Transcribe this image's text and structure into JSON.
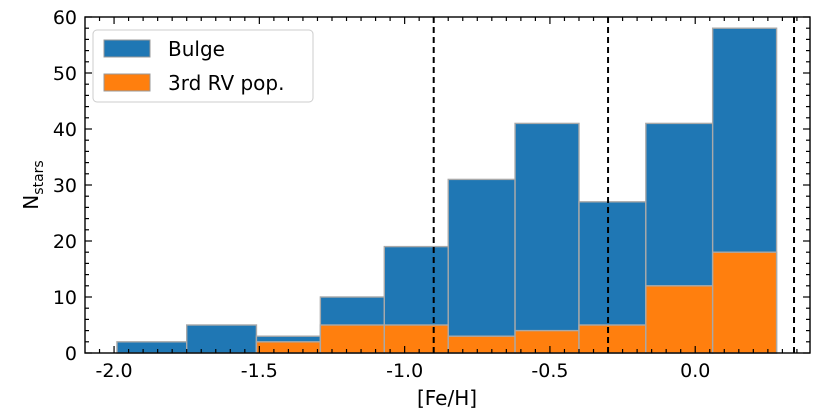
{
  "chart_data": {
    "type": "bar",
    "title": "",
    "xlabel": "[Fe/H]",
    "ylabel_main": "N",
    "ylabel_sub": "stars",
    "xlim": [
      -2.1,
      0.395
    ],
    "ylim": [
      0,
      60
    ],
    "bin_edges": [
      -1.99,
      -1.75,
      -1.51,
      -1.29,
      -1.07,
      -0.85,
      -0.62,
      -0.4,
      -0.17,
      0.06,
      0.28
    ],
    "x_ticks": [
      -2.0,
      -1.5,
      -1.0,
      -0.5,
      0.0
    ],
    "x_tick_labels": [
      "-2.0",
      "-1.5",
      "-1.0",
      "-0.5",
      "0.0"
    ],
    "y_ticks": [
      0,
      10,
      20,
      30,
      40,
      50,
      60
    ],
    "y_tick_labels": [
      "0",
      "10",
      "20",
      "30",
      "40",
      "50",
      "60"
    ],
    "vlines": [
      -0.9,
      -0.3,
      0.34
    ],
    "legend_position": "top-left",
    "grid": false,
    "series": [
      {
        "name": "Bulge",
        "color": "#1f77b4",
        "values": [
          2,
          5,
          3,
          10,
          19,
          31,
          41,
          27,
          41,
          58
        ]
      },
      {
        "name": "3rd RV pop.",
        "color": "#ff7f0e",
        "values": [
          0,
          0,
          2,
          5,
          5,
          3,
          4,
          5,
          12,
          18
        ]
      }
    ]
  }
}
